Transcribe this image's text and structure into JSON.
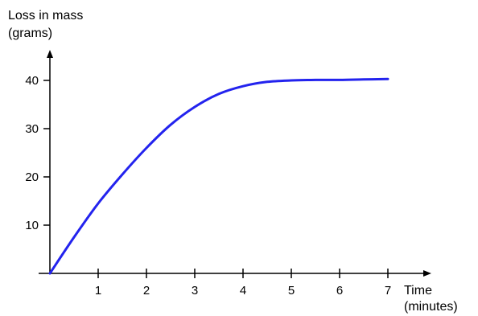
{
  "chart_data": {
    "type": "line",
    "title": "",
    "ylabel_line1": "Loss in mass",
    "ylabel_line2": "(grams)",
    "xlabel_line1": "Time",
    "xlabel_line2": "(minutes)",
    "xlim": [
      0,
      7
    ],
    "ylim": [
      0,
      40
    ],
    "x_ticks": [
      "1",
      "2",
      "3",
      "4",
      "5",
      "6",
      "7"
    ],
    "y_ticks": [
      "10",
      "20",
      "30",
      "40"
    ],
    "grid": false,
    "line_color": "#2323ee",
    "series": [
      {
        "x": [
          0,
          0.5,
          1,
          1.5,
          2,
          2.5,
          3,
          3.5,
          4,
          4.5,
          5,
          5.5,
          6,
          6.5,
          7
        ],
        "y": [
          0,
          7.5,
          14.5,
          20.5,
          26,
          30.8,
          34.5,
          37.2,
          38.8,
          39.7,
          40,
          40.1,
          40.1,
          40.2,
          40.3
        ]
      }
    ]
  }
}
